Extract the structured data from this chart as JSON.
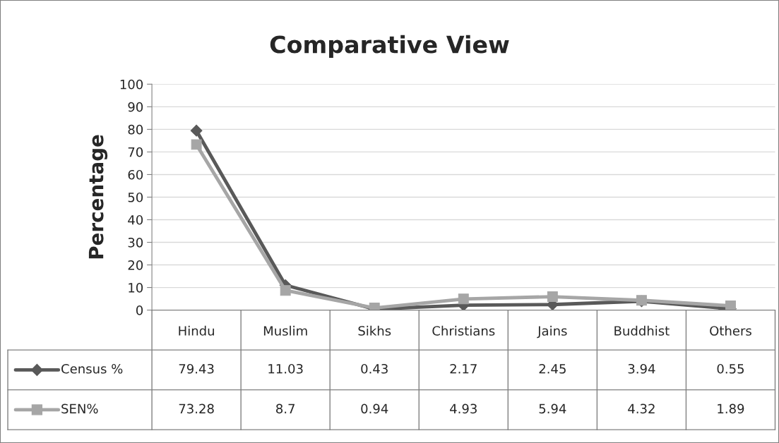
{
  "chart_data": {
    "type": "line",
    "title": "Comparative View",
    "ylabel": "Percentage",
    "categories": [
      "Hindu",
      "Muslim",
      "Sikhs",
      "Christians",
      "Jains",
      "Buddhist",
      "Others"
    ],
    "series": [
      {
        "name": "Census %",
        "color": "#595959",
        "marker": "diamond",
        "values": [
          79.43,
          11.03,
          0.43,
          2.17,
          2.45,
          3.94,
          0.55
        ]
      },
      {
        "name": "SEN%",
        "color": "#a6a6a6",
        "marker": "square",
        "values": [
          73.28,
          8.7,
          0.94,
          4.93,
          5.94,
          4.32,
          1.89
        ]
      }
    ],
    "ylim": [
      0,
      100
    ],
    "yticks": [
      0,
      10,
      20,
      30,
      40,
      50,
      60,
      70,
      80,
      90,
      100
    ],
    "grid": "y",
    "legend": "bottom",
    "data_labels": true
  }
}
